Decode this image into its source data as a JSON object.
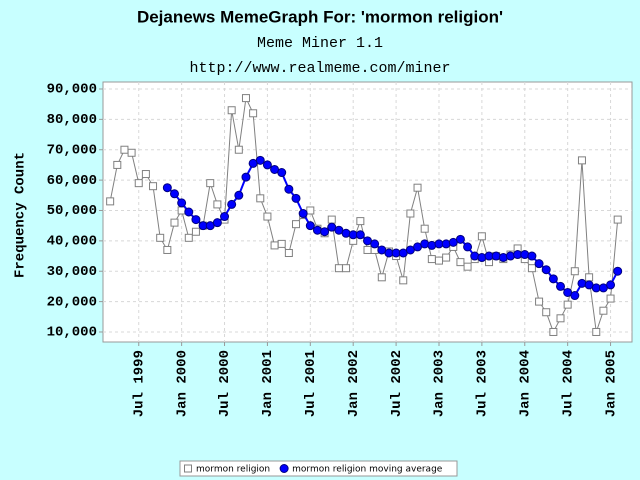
{
  "chart_data": {
    "type": "line",
    "title": "Dejanews MemeGraph For: 'mormon religion'",
    "subtitle": "Meme Miner 1.1",
    "url": "http://www.realmeme.com/miner",
    "y_label": "Frequency Count",
    "x": [
      "1999-03",
      "1999-04",
      "1999-05",
      "1999-06",
      "1999-07",
      "1999-08",
      "1999-09",
      "1999-10",
      "1999-11",
      "1999-12",
      "2000-01",
      "2000-02",
      "2000-03",
      "2000-04",
      "2000-05",
      "2000-06",
      "2000-07",
      "2000-08",
      "2000-09",
      "2000-10",
      "2000-11",
      "2000-12",
      "2001-01",
      "2001-02",
      "2001-03",
      "2001-04",
      "2001-05",
      "2001-06",
      "2001-07",
      "2001-08",
      "2001-09",
      "2001-10",
      "2001-11",
      "2001-12",
      "2002-01",
      "2002-02",
      "2002-03",
      "2002-04",
      "2002-05",
      "2002-06",
      "2002-07",
      "2002-08",
      "2002-09",
      "2002-10",
      "2002-11",
      "2002-12",
      "2003-01",
      "2003-02",
      "2003-03",
      "2003-04",
      "2003-05",
      "2003-06",
      "2003-07",
      "2003-08",
      "2003-09",
      "2003-10",
      "2003-11",
      "2003-12",
      "2004-01",
      "2004-02",
      "2004-03",
      "2004-04",
      "2004-05",
      "2004-06",
      "2004-07",
      "2004-08",
      "2004-09",
      "2004-10",
      "2004-11",
      "2004-12",
      "2005-01",
      "2005-02"
    ],
    "series": [
      {
        "name": "mormon religion",
        "color": "#808080",
        "marker": "square",
        "values": [
          53000,
          65000,
          70000,
          69000,
          59000,
          62000,
          58000,
          41000,
          37000,
          46000,
          50000,
          41000,
          43000,
          45000,
          59000,
          52000,
          47000,
          83000,
          70000,
          87000,
          82000,
          54000,
          48000,
          38500,
          39000,
          36000,
          45500,
          48500,
          50000,
          44000,
          42500,
          47000,
          31000,
          31000,
          40000,
          46500,
          37000,
          37000,
          28000,
          36500,
          35000,
          27000,
          49000,
          57500,
          44000,
          34000,
          33500,
          34500,
          38000,
          33000,
          31500,
          34000,
          41500,
          33000,
          35000,
          34000,
          35500,
          37500,
          34000,
          31000,
          20000,
          16500,
          10000,
          14500,
          19000,
          30000,
          66500,
          28000,
          10000,
          17000,
          21000,
          47000
        ]
      },
      {
        "name": "mormon religion moving average",
        "color": "#0000ff",
        "marker": "circle",
        "values": [
          null,
          null,
          null,
          null,
          null,
          null,
          null,
          null,
          57500,
          55500,
          52500,
          49500,
          47000,
          45000,
          45000,
          46000,
          48000,
          52000,
          55000,
          61000,
          65500,
          66500,
          65000,
          63500,
          62500,
          57000,
          54000,
          49000,
          45000,
          43500,
          43000,
          44500,
          43500,
          42500,
          42000,
          42000,
          40000,
          39000,
          37000,
          36000,
          36000,
          36000,
          37000,
          38000,
          39000,
          38500,
          39000,
          39000,
          39500,
          40500,
          38000,
          35000,
          34500,
          35000,
          35000,
          34500,
          35000,
          35500,
          35500,
          35000,
          32500,
          30500,
          27500,
          25000,
          23000,
          22000,
          26000,
          25500,
          24500,
          24500,
          25500,
          30000
        ]
      }
    ],
    "xlim": [
      "1999-02",
      "2005-04"
    ],
    "xticks": [
      {
        "value": "1999-07",
        "label": "Jul 1999"
      },
      {
        "value": "2000-01",
        "label": "Jan 2000"
      },
      {
        "value": "2000-07",
        "label": "Jul 2000"
      },
      {
        "value": "2001-01",
        "label": "Jan 2001"
      },
      {
        "value": "2001-07",
        "label": "Jul 2001"
      },
      {
        "value": "2002-01",
        "label": "Jan 2002"
      },
      {
        "value": "2002-07",
        "label": "Jul 2002"
      },
      {
        "value": "2003-01",
        "label": "Jan 2003"
      },
      {
        "value": "2003-07",
        "label": "Jul 2003"
      },
      {
        "value": "2004-01",
        "label": "Jan 2004"
      },
      {
        "value": "2004-07",
        "label": "Jul 2004"
      },
      {
        "value": "2005-01",
        "label": "Jan 2005"
      }
    ],
    "ylim": [
      6700,
      92300
    ],
    "yticks": [
      {
        "value": 10000,
        "label": "10,000"
      },
      {
        "value": 20000,
        "label": "20,000"
      },
      {
        "value": 30000,
        "label": "30,000"
      },
      {
        "value": 40000,
        "label": "40,000"
      },
      {
        "value": 50000,
        "label": "50,000"
      },
      {
        "value": 60000,
        "label": "60,000"
      },
      {
        "value": 70000,
        "label": "70,000"
      },
      {
        "value": 80000,
        "label": "80,000"
      },
      {
        "value": 90000,
        "label": "90,000"
      }
    ],
    "grid": true,
    "legend": "bottom"
  }
}
